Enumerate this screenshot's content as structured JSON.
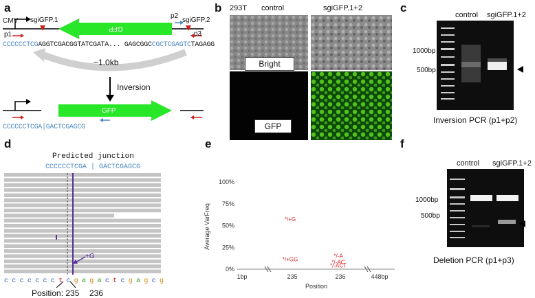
{
  "panels": {
    "a": {
      "label": "a",
      "cmv": "CMV",
      "sg1": "sgiGFP.1",
      "sg2": "sgiGFP.2",
      "p1": "p1",
      "p2": "p2",
      "p3": "p3",
      "gfp_rev": "GFP",
      "gfp_fwd": "GFP",
      "seq_left_blue": "CCCCCCTCG",
      "seq_mid": "AGGTCGACGGTATCGATA... GAGCGGC",
      "seq_right_blue": "CGCTCGAGTC",
      "seq_end": "TAGAGG",
      "distance": "~1.0kb",
      "inversion": "Inversion",
      "junction_seq": "CCCCCCTCGA|GACTCGAGCG"
    },
    "b": {
      "label": "b",
      "cell": "293T",
      "col1": "control",
      "col2": "sgiGFP.1+2",
      "row1": "Bright",
      "row2": "GFP"
    },
    "c": {
      "label": "c",
      "lane1": "control",
      "lane2": "sgiGFP.1+2",
      "m1000": "1000bp",
      "m500": "500bp",
      "caption": "Inversion PCR (p1+p2)"
    },
    "d": {
      "label": "d",
      "title": "Predicted junction",
      "seq": "CCCCCCTCGA | GACTCGAGCG",
      "insert": "+G",
      "position_text": "Position: 235",
      "pos2": "236",
      "ref_bases": [
        "c",
        "c",
        "c",
        "c",
        "c",
        "c",
        "c",
        "t",
        "c",
        "g",
        "a",
        "g",
        "a",
        "c",
        "t",
        "c",
        "g",
        "a",
        "g",
        "c",
        "g"
      ]
    },
    "e": {
      "label": "e"
    },
    "f": {
      "label": "f",
      "lane1": "control",
      "lane2": "sgiGFP.1+2",
      "m1000": "1000bp",
      "m500": "500bp",
      "caption": "Deletion PCR (p1+p3)"
    }
  },
  "chart_data": {
    "type": "scatter",
    "title": "",
    "xlabel": "Position",
    "ylabel": "Average VarFreq",
    "x_ticks": [
      "1bp",
      "235",
      "236",
      "448bp"
    ],
    "y_ticks": [
      "0%",
      "25%",
      "50%",
      "75%",
      "100%"
    ],
    "ylim": [
      0,
      100
    ],
    "points": [
      {
        "x": "235",
        "y": 55,
        "label": "*/+G"
      },
      {
        "x": "235",
        "y": 9,
        "label": "*/+GG"
      },
      {
        "x": "236",
        "y": 13,
        "label": "*/-A"
      },
      {
        "x": "236",
        "y": 6,
        "label": "*/-AC"
      },
      {
        "x": "236",
        "y": 2,
        "label": "*/-ACT"
      }
    ],
    "colors": {
      "labels": "#d41c1c"
    }
  }
}
